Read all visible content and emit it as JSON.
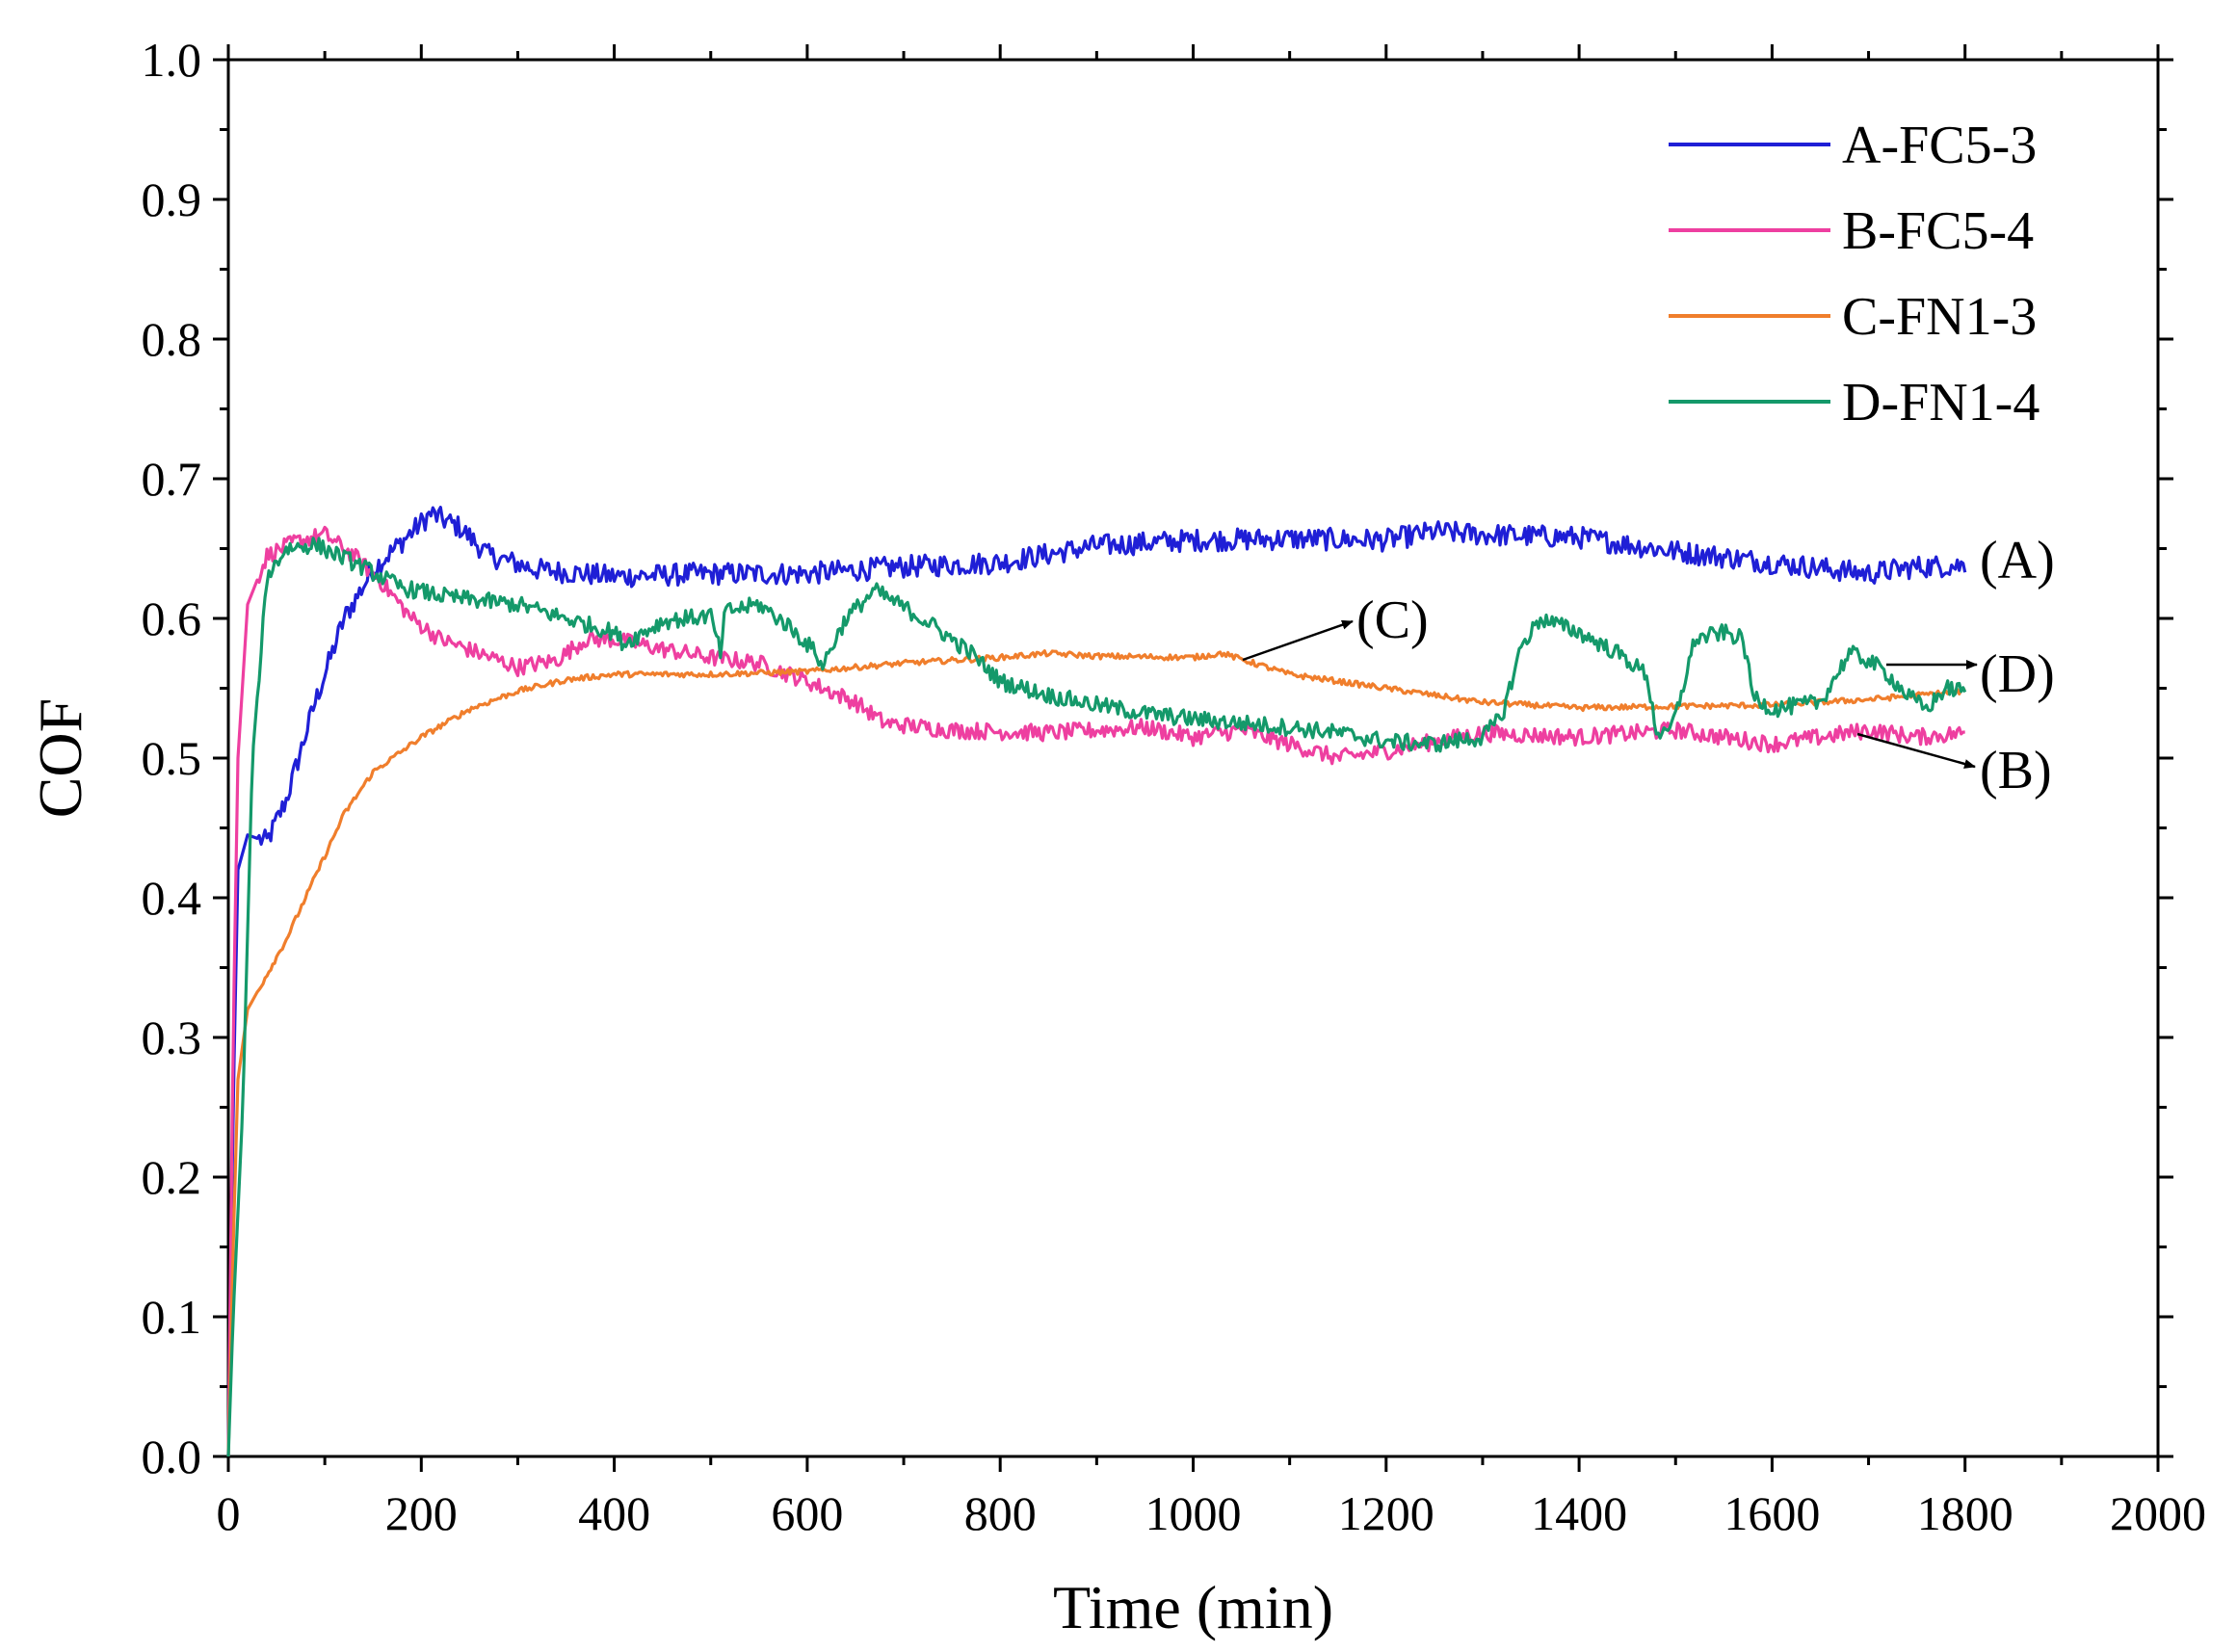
{
  "chart_data": {
    "type": "line",
    "title": "",
    "xlabel": "Time (min)",
    "ylabel": "COF",
    "xlim": [
      0,
      2000
    ],
    "ylim": [
      0,
      1.0
    ],
    "x_ticks": [
      "0",
      "200",
      "400",
      "600",
      "800",
      "1000",
      "1200",
      "1400",
      "1600",
      "1800",
      "2000"
    ],
    "y_ticks": [
      "0.0",
      "0.1",
      "0.2",
      "0.3",
      "0.4",
      "0.5",
      "0.6",
      "0.7",
      "0.8",
      "0.9",
      "1.0"
    ],
    "grid": false,
    "legend_position": "top-right",
    "series": [
      {
        "name": "A-FC5-3",
        "color": "#1f1fd6",
        "noise": 0.008,
        "points": [
          [
            0,
            0.0
          ],
          [
            5,
            0.25
          ],
          [
            10,
            0.42
          ],
          [
            20,
            0.445
          ],
          [
            40,
            0.44
          ],
          [
            60,
            0.47
          ],
          [
            90,
            0.54
          ],
          [
            120,
            0.6
          ],
          [
            150,
            0.635
          ],
          [
            180,
            0.655
          ],
          [
            210,
            0.675
          ],
          [
            240,
            0.665
          ],
          [
            270,
            0.645
          ],
          [
            320,
            0.635
          ],
          [
            400,
            0.63
          ],
          [
            500,
            0.632
          ],
          [
            600,
            0.632
          ],
          [
            700,
            0.637
          ],
          [
            800,
            0.64
          ],
          [
            900,
            0.652
          ],
          [
            1000,
            0.656
          ],
          [
            1100,
            0.657
          ],
          [
            1200,
            0.656
          ],
          [
            1250,
            0.662
          ],
          [
            1300,
            0.66
          ],
          [
            1400,
            0.658
          ],
          [
            1500,
            0.648
          ],
          [
            1600,
            0.64
          ],
          [
            1700,
            0.632
          ],
          [
            1750,
            0.637
          ],
          [
            1800,
            0.638
          ]
        ]
      },
      {
        "name": "B-FC5-4",
        "color": "#ee3fa0",
        "noise": 0.006,
        "points": [
          [
            0,
            0.0
          ],
          [
            5,
            0.3
          ],
          [
            10,
            0.5
          ],
          [
            20,
            0.61
          ],
          [
            40,
            0.645
          ],
          [
            70,
            0.655
          ],
          [
            100,
            0.66
          ],
          [
            130,
            0.645
          ],
          [
            160,
            0.625
          ],
          [
            190,
            0.6
          ],
          [
            220,
            0.585
          ],
          [
            260,
            0.575
          ],
          [
            300,
            0.565
          ],
          [
            340,
            0.57
          ],
          [
            370,
            0.585
          ],
          [
            400,
            0.585
          ],
          [
            450,
            0.578
          ],
          [
            500,
            0.572
          ],
          [
            550,
            0.568
          ],
          [
            600,
            0.555
          ],
          [
            650,
            0.54
          ],
          [
            680,
            0.525
          ],
          [
            750,
            0.52
          ],
          [
            850,
            0.518
          ],
          [
            950,
            0.522
          ],
          [
            1000,
            0.515
          ],
          [
            1050,
            0.52
          ],
          [
            1100,
            0.51
          ],
          [
            1150,
            0.5
          ],
          [
            1200,
            0.505
          ],
          [
            1250,
            0.512
          ],
          [
            1300,
            0.518
          ],
          [
            1400,
            0.515
          ],
          [
            1500,
            0.52
          ],
          [
            1600,
            0.51
          ],
          [
            1700,
            0.52
          ],
          [
            1750,
            0.515
          ],
          [
            1800,
            0.518
          ]
        ]
      },
      {
        "name": "C-FN1-3",
        "color": "#f07e2c",
        "noise": 0.002,
        "points": [
          [
            0,
            0.0
          ],
          [
            5,
            0.15
          ],
          [
            10,
            0.27
          ],
          [
            20,
            0.32
          ],
          [
            40,
            0.345
          ],
          [
            60,
            0.37
          ],
          [
            80,
            0.4
          ],
          [
            100,
            0.43
          ],
          [
            120,
            0.46
          ],
          [
            150,
            0.49
          ],
          [
            180,
            0.505
          ],
          [
            200,
            0.515
          ],
          [
            250,
            0.535
          ],
          [
            300,
            0.548
          ],
          [
            350,
            0.556
          ],
          [
            400,
            0.56
          ],
          [
            500,
            0.56
          ],
          [
            600,
            0.562
          ],
          [
            700,
            0.568
          ],
          [
            800,
            0.572
          ],
          [
            850,
            0.575
          ],
          [
            900,
            0.573
          ],
          [
            1000,
            0.572
          ],
          [
            1030,
            0.575
          ],
          [
            1100,
            0.56
          ],
          [
            1200,
            0.55
          ],
          [
            1300,
            0.54
          ],
          [
            1400,
            0.536
          ],
          [
            1500,
            0.537
          ],
          [
            1600,
            0.538
          ],
          [
            1700,
            0.542
          ],
          [
            1800,
            0.548
          ]
        ]
      },
      {
        "name": "D-FN1-4",
        "color": "#14996a",
        "noise": 0.006,
        "points": [
          [
            0,
            0.0
          ],
          [
            5,
            0.1
          ],
          [
            15,
            0.25
          ],
          [
            25,
            0.5
          ],
          [
            40,
            0.63
          ],
          [
            60,
            0.65
          ],
          [
            90,
            0.653
          ],
          [
            130,
            0.64
          ],
          [
            180,
            0.622
          ],
          [
            230,
            0.615
          ],
          [
            300,
            0.61
          ],
          [
            350,
            0.6
          ],
          [
            400,
            0.59
          ],
          [
            410,
            0.582
          ],
          [
            430,
            0.59
          ],
          [
            450,
            0.598
          ],
          [
            500,
            0.602
          ],
          [
            510,
            0.575
          ],
          [
            515,
            0.605
          ],
          [
            550,
            0.61
          ],
          [
            580,
            0.595
          ],
          [
            610,
            0.575
          ],
          [
            615,
            0.565
          ],
          [
            640,
            0.6
          ],
          [
            670,
            0.62
          ],
          [
            700,
            0.608
          ],
          [
            730,
            0.595
          ],
          [
            770,
            0.575
          ],
          [
            800,
            0.555
          ],
          [
            850,
            0.545
          ],
          [
            900,
            0.538
          ],
          [
            950,
            0.532
          ],
          [
            1000,
            0.528
          ],
          [
            1050,
            0.525
          ],
          [
            1100,
            0.522
          ],
          [
            1150,
            0.518
          ],
          [
            1200,
            0.512
          ],
          [
            1250,
            0.51
          ],
          [
            1300,
            0.515
          ],
          [
            1320,
            0.53
          ],
          [
            1340,
            0.58
          ],
          [
            1360,
            0.6
          ],
          [
            1400,
            0.59
          ],
          [
            1440,
            0.575
          ],
          [
            1470,
            0.56
          ],
          [
            1480,
            0.52
          ],
          [
            1490,
            0.515
          ],
          [
            1500,
            0.53
          ],
          [
            1520,
            0.585
          ],
          [
            1550,
            0.59
          ],
          [
            1570,
            0.585
          ],
          [
            1580,
            0.545
          ],
          [
            1600,
            0.535
          ],
          [
            1650,
            0.54
          ],
          [
            1680,
            0.575
          ],
          [
            1700,
            0.57
          ],
          [
            1720,
            0.56
          ],
          [
            1740,
            0.545
          ],
          [
            1760,
            0.535
          ],
          [
            1780,
            0.55
          ],
          [
            1800,
            0.548
          ]
        ]
      }
    ],
    "annotations": [
      {
        "label": "(A)",
        "series": "A-FC5-3"
      },
      {
        "label": "(B)",
        "series": "B-FC5-4"
      },
      {
        "label": "(C)",
        "series": "C-FN1-3"
      },
      {
        "label": "(D)",
        "series": "D-FN1-4"
      }
    ]
  }
}
